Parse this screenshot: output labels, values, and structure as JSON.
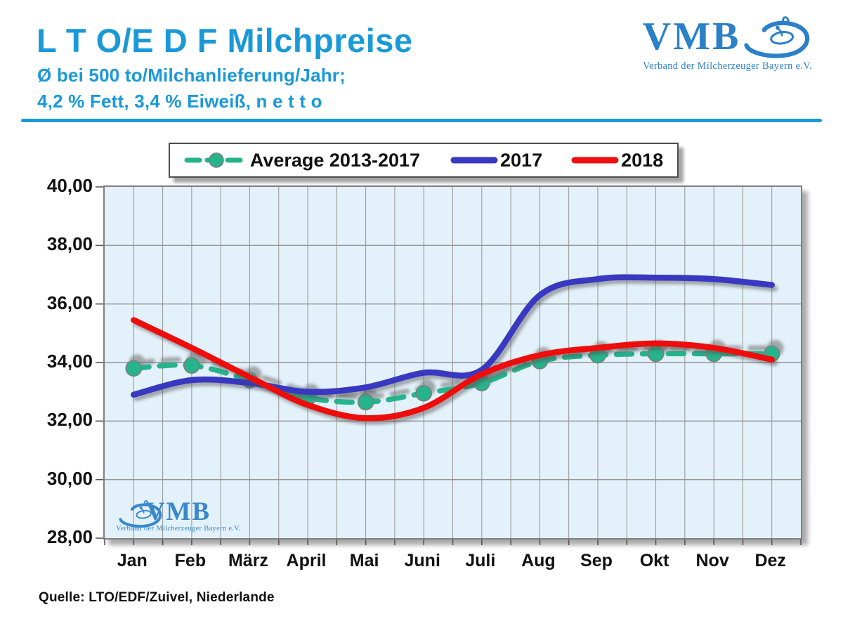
{
  "header": {
    "title": "L T O/E D F Milchpreise",
    "subtitle_line1": "Ø bei 500 to/Milchanlieferung/Jahr;",
    "subtitle_line2": "4,2 % Fett, 3,4 % Eiweiß, n e t t o",
    "logo": {
      "acronym": "VMB",
      "caption": "Verband der Milcherzeuger Bayern e.V."
    }
  },
  "watermark": {
    "acronym": "VMB",
    "caption": "Verband der Milcherzeuger Bayern e.V."
  },
  "source": "Quelle: LTO/EDF/Zuivel, Niederlande",
  "colors": {
    "title_blue": "#1a99d9",
    "logo_blue": "#2b80c8",
    "plot_bg": "#e3f1fa",
    "grid": "#949494",
    "tick": "#555555",
    "ink": "#111111",
    "marker_stroke": "#7d7d7d"
  },
  "chart_data": {
    "type": "line",
    "title": "",
    "xlabel": "",
    "ylabel": "",
    "categories": [
      "Jan",
      "Feb",
      "März",
      "April",
      "Mai",
      "Juni",
      "Juli",
      "Aug",
      "Sep",
      "Okt",
      "Nov",
      "Dez"
    ],
    "series": [
      {
        "name": "Average 2013-2017",
        "color": "#26b48c",
        "style": "dashed-with-markers",
        "values": [
          33.8,
          33.9,
          33.4,
          32.8,
          32.65,
          32.95,
          33.3,
          34.05,
          34.25,
          34.3,
          34.3,
          34.3
        ]
      },
      {
        "name": "2017",
        "color": "#3838c0",
        "style": "solid",
        "values": [
          32.9,
          33.4,
          33.3,
          33.0,
          33.15,
          33.65,
          33.75,
          36.3,
          36.85,
          36.9,
          36.85,
          36.65
        ]
      },
      {
        "name": "2018",
        "color": "#ee1010",
        "style": "solid",
        "values": [
          35.45,
          34.5,
          33.5,
          32.55,
          32.1,
          32.45,
          33.6,
          34.25,
          34.5,
          34.65,
          34.5,
          34.1
        ]
      }
    ],
    "ylim": [
      28,
      40
    ],
    "ytick_step": 2,
    "ytick_labels": [
      "40,00",
      "38,00",
      "36,00",
      "34,00",
      "32,00",
      "30,00",
      "28,00"
    ],
    "grid": "horizontal major every 2 units; vertical every half month",
    "legend_position": "top",
    "smoothing": "spline"
  }
}
